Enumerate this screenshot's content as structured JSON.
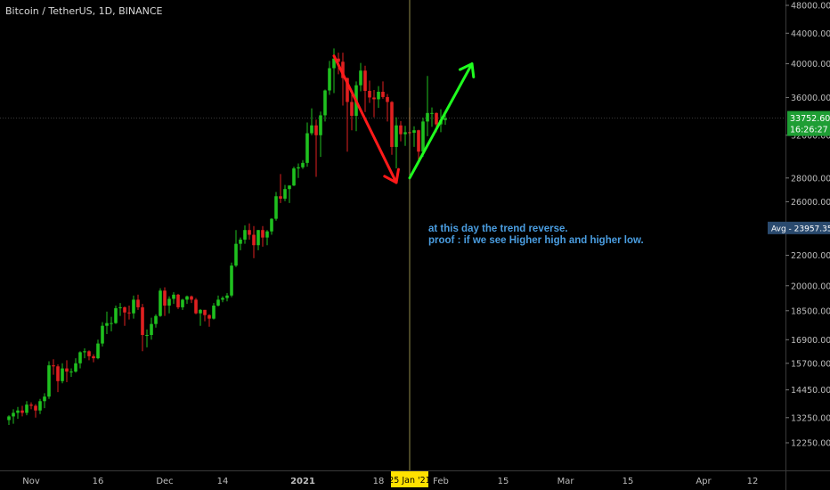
{
  "header": {
    "title": "Bitcoin / TetherUS, 1D, BINANCE"
  },
  "annotation": {
    "line1": "at this day the trend reverse.",
    "line2": "proof : if we see Higher high and higher low."
  },
  "colors": {
    "background": "#000000",
    "up": "#1fc01f",
    "down": "#e02020",
    "arrow_down": "#ff1a1a",
    "arrow_up": "#1fff1f",
    "crosshair": "#b8b060",
    "annotation_text": "#4a9de0",
    "price_badge": "#1e9e34",
    "date_badge": "#ffe100"
  },
  "chart_data": {
    "type": "candlestick",
    "y_scale": "log",
    "y_ticks": [
      12250,
      13250,
      14450,
      15700,
      16900,
      18500,
      20000,
      22000,
      24000,
      26000,
      28000,
      32000,
      36000,
      40000,
      44000,
      48000
    ],
    "y_tick_labels": [
      "12250.00",
      "13250.00",
      "14450.00",
      "15700.00",
      "16900.00",
      "18500.00",
      "20000.00",
      "22000.00",
      "24000.00",
      "26000.00",
      "28000.00",
      "32000.00",
      "36000.00",
      "40000.00",
      "44000.00",
      "48000.00"
    ],
    "x_ticks": [
      "Nov",
      "16",
      "Dec",
      "14",
      "2021",
      "18",
      "Feb",
      "15",
      "Mar",
      "15",
      "Apr",
      "12"
    ],
    "x_tick_dates": [
      "2020-11-01",
      "2020-11-16",
      "2020-12-01",
      "2020-12-14",
      "2021-01-01",
      "2021-01-18",
      "2021-02-01",
      "2021-02-15",
      "2021-03-01",
      "2021-03-15",
      "2021-04-01",
      "2021-04-12"
    ],
    "crosshair": {
      "date": "2021-01-25",
      "label": "25 Jan '21"
    },
    "current_price": {
      "value": 33752.6,
      "label": "33752.60",
      "countdown": "16:26:27"
    },
    "average": {
      "value": 23957.35,
      "label": "Avg - 23957.35"
    },
    "trend_arrows": [
      {
        "direction": "down",
        "from": {
          "date": "2021-01-08",
          "price": 41000
        },
        "to": {
          "date": "2021-01-22",
          "price": 27600
        }
      },
      {
        "direction": "up",
        "from": {
          "date": "2021-01-25",
          "price": 28000
        },
        "to": {
          "date": "2021-02-08",
          "price": 40000
        }
      }
    ],
    "candles": [
      {
        "date": "2020-10-27",
        "o": 13150,
        "h": 13350,
        "l": 12950,
        "c": 13300
      },
      {
        "date": "2020-10-28",
        "o": 13300,
        "h": 13600,
        "l": 13000,
        "c": 13450
      },
      {
        "date": "2020-10-29",
        "o": 13450,
        "h": 13700,
        "l": 13200,
        "c": 13550
      },
      {
        "date": "2020-10-30",
        "o": 13550,
        "h": 13750,
        "l": 13300,
        "c": 13450
      },
      {
        "date": "2020-10-31",
        "o": 13450,
        "h": 13950,
        "l": 13350,
        "c": 13800
      },
      {
        "date": "2020-11-01",
        "o": 13800,
        "h": 13900,
        "l": 13600,
        "c": 13750
      },
      {
        "date": "2020-11-02",
        "o": 13750,
        "h": 13820,
        "l": 13250,
        "c": 13550
      },
      {
        "date": "2020-11-03",
        "o": 13550,
        "h": 14050,
        "l": 13400,
        "c": 13950
      },
      {
        "date": "2020-11-04",
        "o": 13950,
        "h": 14300,
        "l": 13650,
        "c": 14150
      },
      {
        "date": "2020-11-05",
        "o": 14150,
        "h": 15800,
        "l": 14050,
        "c": 15600
      },
      {
        "date": "2020-11-06",
        "o": 15600,
        "h": 15900,
        "l": 15150,
        "c": 15550
      },
      {
        "date": "2020-11-07",
        "o": 15550,
        "h": 15650,
        "l": 14350,
        "c": 14850
      },
      {
        "date": "2020-11-08",
        "o": 14850,
        "h": 15700,
        "l": 14750,
        "c": 15450
      },
      {
        "date": "2020-11-09",
        "o": 15450,
        "h": 15850,
        "l": 14800,
        "c": 15300
      },
      {
        "date": "2020-11-10",
        "o": 15300,
        "h": 15450,
        "l": 15050,
        "c": 15300
      },
      {
        "date": "2020-11-11",
        "o": 15300,
        "h": 15950,
        "l": 15250,
        "c": 15700
      },
      {
        "date": "2020-11-12",
        "o": 15700,
        "h": 16300,
        "l": 15450,
        "c": 16250
      },
      {
        "date": "2020-11-13",
        "o": 16250,
        "h": 16450,
        "l": 15950,
        "c": 16300
      },
      {
        "date": "2020-11-14",
        "o": 16300,
        "h": 16350,
        "l": 15850,
        "c": 16050
      },
      {
        "date": "2020-11-15",
        "o": 16050,
        "h": 16150,
        "l": 15750,
        "c": 15950
      },
      {
        "date": "2020-11-16",
        "o": 15950,
        "h": 16900,
        "l": 15900,
        "c": 16700
      },
      {
        "date": "2020-11-17",
        "o": 16700,
        "h": 17850,
        "l": 16550,
        "c": 17650
      },
      {
        "date": "2020-11-18",
        "o": 17650,
        "h": 18450,
        "l": 17200,
        "c": 17800
      },
      {
        "date": "2020-11-19",
        "o": 17800,
        "h": 18150,
        "l": 17350,
        "c": 17800
      },
      {
        "date": "2020-11-20",
        "o": 17800,
        "h": 18800,
        "l": 17750,
        "c": 18650
      },
      {
        "date": "2020-11-21",
        "o": 18650,
        "h": 18950,
        "l": 18200,
        "c": 18700
      },
      {
        "date": "2020-11-22",
        "o": 18700,
        "h": 18750,
        "l": 17650,
        "c": 18400
      },
      {
        "date": "2020-11-23",
        "o": 18400,
        "h": 18800,
        "l": 18000,
        "c": 18350
      },
      {
        "date": "2020-11-24",
        "o": 18350,
        "h": 19400,
        "l": 18050,
        "c": 19150
      },
      {
        "date": "2020-11-25",
        "o": 19150,
        "h": 19450,
        "l": 18550,
        "c": 18700
      },
      {
        "date": "2020-11-26",
        "o": 18700,
        "h": 18900,
        "l": 16300,
        "c": 17150
      },
      {
        "date": "2020-11-27",
        "o": 17150,
        "h": 17450,
        "l": 16500,
        "c": 17150
      },
      {
        "date": "2020-11-28",
        "o": 17150,
        "h": 18100,
        "l": 16900,
        "c": 17750
      },
      {
        "date": "2020-11-29",
        "o": 17750,
        "h": 18300,
        "l": 17550,
        "c": 18200
      },
      {
        "date": "2020-11-30",
        "o": 18200,
        "h": 19850,
        "l": 18150,
        "c": 19700
      },
      {
        "date": "2020-12-01",
        "o": 19700,
        "h": 19900,
        "l": 18200,
        "c": 18800
      },
      {
        "date": "2020-12-02",
        "o": 18800,
        "h": 19350,
        "l": 18350,
        "c": 19200
      },
      {
        "date": "2020-12-03",
        "o": 19200,
        "h": 19600,
        "l": 18900,
        "c": 19450
      },
      {
        "date": "2020-12-04",
        "o": 19450,
        "h": 19500,
        "l": 18600,
        "c": 18700
      },
      {
        "date": "2020-12-05",
        "o": 18700,
        "h": 19200,
        "l": 18550,
        "c": 19150
      },
      {
        "date": "2020-12-06",
        "o": 19150,
        "h": 19400,
        "l": 18900,
        "c": 19350
      },
      {
        "date": "2020-12-07",
        "o": 19350,
        "h": 19400,
        "l": 18950,
        "c": 19150
      },
      {
        "date": "2020-12-08",
        "o": 19150,
        "h": 19250,
        "l": 18300,
        "c": 18350
      },
      {
        "date": "2020-12-09",
        "o": 18350,
        "h": 18600,
        "l": 17650,
        "c": 18550
      },
      {
        "date": "2020-12-10",
        "o": 18550,
        "h": 18550,
        "l": 17900,
        "c": 18250
      },
      {
        "date": "2020-12-11",
        "o": 18250,
        "h": 18300,
        "l": 17600,
        "c": 18050
      },
      {
        "date": "2020-12-12",
        "o": 18050,
        "h": 18950,
        "l": 18000,
        "c": 18800
      },
      {
        "date": "2020-12-13",
        "o": 18800,
        "h": 19400,
        "l": 18750,
        "c": 19150
      },
      {
        "date": "2020-12-14",
        "o": 19150,
        "h": 19350,
        "l": 19000,
        "c": 19250
      },
      {
        "date": "2020-12-15",
        "o": 19250,
        "h": 19550,
        "l": 19050,
        "c": 19400
      },
      {
        "date": "2020-12-16",
        "o": 19400,
        "h": 21500,
        "l": 19300,
        "c": 21300
      },
      {
        "date": "2020-12-17",
        "o": 21300,
        "h": 23800,
        "l": 21200,
        "c": 22800
      },
      {
        "date": "2020-12-18",
        "o": 22800,
        "h": 23250,
        "l": 22350,
        "c": 23100
      },
      {
        "date": "2020-12-19",
        "o": 23100,
        "h": 24150,
        "l": 22800,
        "c": 23800
      },
      {
        "date": "2020-12-20",
        "o": 23800,
        "h": 24300,
        "l": 23100,
        "c": 23450
      },
      {
        "date": "2020-12-21",
        "o": 23450,
        "h": 24100,
        "l": 21800,
        "c": 22700
      },
      {
        "date": "2020-12-22",
        "o": 22700,
        "h": 23800,
        "l": 22350,
        "c": 23800
      },
      {
        "date": "2020-12-23",
        "o": 23800,
        "h": 24100,
        "l": 22600,
        "c": 23250
      },
      {
        "date": "2020-12-24",
        "o": 23250,
        "h": 23800,
        "l": 22700,
        "c": 23700
      },
      {
        "date": "2020-12-25",
        "o": 23700,
        "h": 24700,
        "l": 23450,
        "c": 24650
      },
      {
        "date": "2020-12-26",
        "o": 24650,
        "h": 26800,
        "l": 24500,
        "c": 26450
      },
      {
        "date": "2020-12-27",
        "o": 26450,
        "h": 28350,
        "l": 25900,
        "c": 26250
      },
      {
        "date": "2020-12-28",
        "o": 26250,
        "h": 27400,
        "l": 26050,
        "c": 27050
      },
      {
        "date": "2020-12-29",
        "o": 27050,
        "h": 27350,
        "l": 25900,
        "c": 27350
      },
      {
        "date": "2020-12-30",
        "o": 27350,
        "h": 29000,
        "l": 27300,
        "c": 28850
      },
      {
        "date": "2020-12-31",
        "o": 28850,
        "h": 29300,
        "l": 28000,
        "c": 28950
      },
      {
        "date": "2021-01-01",
        "o": 28950,
        "h": 29600,
        "l": 28800,
        "c": 29350
      },
      {
        "date": "2021-01-02",
        "o": 29350,
        "h": 33300,
        "l": 29000,
        "c": 32200
      },
      {
        "date": "2021-01-03",
        "o": 32200,
        "h": 34800,
        "l": 32000,
        "c": 33000
      },
      {
        "date": "2021-01-04",
        "o": 33000,
        "h": 33600,
        "l": 28100,
        "c": 32000
      },
      {
        "date": "2021-01-05",
        "o": 32000,
        "h": 34450,
        "l": 29900,
        "c": 34050
      },
      {
        "date": "2021-01-06",
        "o": 34050,
        "h": 36900,
        "l": 33400,
        "c": 36800
      },
      {
        "date": "2021-01-07",
        "o": 36800,
        "h": 40350,
        "l": 36300,
        "c": 39450
      },
      {
        "date": "2021-01-08",
        "o": 39450,
        "h": 41950,
        "l": 36500,
        "c": 40650
      },
      {
        "date": "2021-01-09",
        "o": 40650,
        "h": 41400,
        "l": 38700,
        "c": 40250
      },
      {
        "date": "2021-01-10",
        "o": 40250,
        "h": 41400,
        "l": 35100,
        "c": 38250
      },
      {
        "date": "2021-01-11",
        "o": 38250,
        "h": 38300,
        "l": 30400,
        "c": 35500
      },
      {
        "date": "2021-01-12",
        "o": 35500,
        "h": 36650,
        "l": 32500,
        "c": 34000
      },
      {
        "date": "2021-01-13",
        "o": 34000,
        "h": 37850,
        "l": 32400,
        "c": 37400
      },
      {
        "date": "2021-01-14",
        "o": 37400,
        "h": 40100,
        "l": 36700,
        "c": 39150
      },
      {
        "date": "2021-01-15",
        "o": 39150,
        "h": 39750,
        "l": 34400,
        "c": 36750
      },
      {
        "date": "2021-01-16",
        "o": 36750,
        "h": 37950,
        "l": 35400,
        "c": 36000
      },
      {
        "date": "2021-01-17",
        "o": 36000,
        "h": 36850,
        "l": 33850,
        "c": 35800
      },
      {
        "date": "2021-01-18",
        "o": 35800,
        "h": 37300,
        "l": 34850,
        "c": 36650
      },
      {
        "date": "2021-01-19",
        "o": 36650,
        "h": 37850,
        "l": 35850,
        "c": 36050
      },
      {
        "date": "2021-01-20",
        "o": 36050,
        "h": 36400,
        "l": 33400,
        "c": 35500
      },
      {
        "date": "2021-01-21",
        "o": 35500,
        "h": 35600,
        "l": 30100,
        "c": 30850
      },
      {
        "date": "2021-01-22",
        "o": 30850,
        "h": 33850,
        "l": 28850,
        "c": 33000
      },
      {
        "date": "2021-01-23",
        "o": 33000,
        "h": 33450,
        "l": 31400,
        "c": 32100
      },
      {
        "date": "2021-01-24",
        "o": 32100,
        "h": 32950,
        "l": 30950,
        "c": 32300
      },
      {
        "date": "2021-01-25",
        "o": 32300,
        "h": 34900,
        "l": 31950,
        "c": 32250
      },
      {
        "date": "2021-01-26",
        "o": 32250,
        "h": 32900,
        "l": 30850,
        "c": 32500
      },
      {
        "date": "2021-01-27",
        "o": 32500,
        "h": 32550,
        "l": 29250,
        "c": 30400
      },
      {
        "date": "2021-01-28",
        "o": 30400,
        "h": 33800,
        "l": 29900,
        "c": 33400
      },
      {
        "date": "2021-01-29",
        "o": 33400,
        "h": 38500,
        "l": 31900,
        "c": 34300
      },
      {
        "date": "2021-01-30",
        "o": 34300,
        "h": 34900,
        "l": 32850,
        "c": 34300
      },
      {
        "date": "2021-01-31",
        "o": 34300,
        "h": 34350,
        "l": 32300,
        "c": 33100
      },
      {
        "date": "2021-02-01",
        "o": 33100,
        "h": 34700,
        "l": 32300,
        "c": 33550
      },
      {
        "date": "2021-02-02",
        "o": 33550,
        "h": 34150,
        "l": 33050,
        "c": 33752.6
      }
    ]
  }
}
